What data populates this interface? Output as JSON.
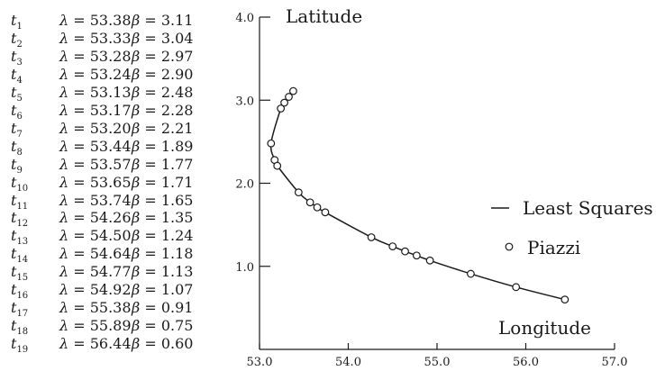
{
  "chart_data": {
    "type": "scatter",
    "ylabel": "Latitude",
    "xlabel": "Longitude",
    "xlim": [
      53.0,
      57.0
    ],
    "ylim": [
      0.0,
      4.0
    ],
    "xticks": [
      "53.0",
      "54.0",
      "55.0",
      "56.0",
      "57.0"
    ],
    "yticks": [
      "1.0",
      "2.0",
      "3.0",
      "4.0"
    ],
    "legend_position": "right",
    "series": [
      {
        "name": "Least Squares",
        "kind": "line"
      },
      {
        "name": "Piazzi",
        "kind": "scatter-open-circle"
      }
    ],
    "observations": [
      {
        "t": "t",
        "i": "1",
        "lambda": "53.38",
        "beta": "3.11"
      },
      {
        "t": "t",
        "i": "2",
        "lambda": "53.33",
        "beta": "3.04"
      },
      {
        "t": "t",
        "i": "3",
        "lambda": "53.28",
        "beta": "2.97"
      },
      {
        "t": "t",
        "i": "4",
        "lambda": "53.24",
        "beta": "2.90"
      },
      {
        "t": "t",
        "i": "5",
        "lambda": "53.13",
        "beta": "2.48"
      },
      {
        "t": "t",
        "i": "6",
        "lambda": "53.17",
        "beta": "2.28"
      },
      {
        "t": "t",
        "i": "7",
        "lambda": "53.20",
        "beta": "2.21"
      },
      {
        "t": "t",
        "i": "8",
        "lambda": "53.44",
        "beta": "1.89"
      },
      {
        "t": "t",
        "i": "9",
        "lambda": "53.57",
        "beta": "1.77"
      },
      {
        "t": "t",
        "i": "10",
        "lambda": "53.65",
        "beta": "1.71"
      },
      {
        "t": "t",
        "i": "11",
        "lambda": "53.74",
        "beta": "1.65"
      },
      {
        "t": "t",
        "i": "12",
        "lambda": "54.26",
        "beta": "1.35"
      },
      {
        "t": "t",
        "i": "13",
        "lambda": "54.50",
        "beta": "1.24"
      },
      {
        "t": "t",
        "i": "14",
        "lambda": "54.64",
        "beta": "1.18"
      },
      {
        "t": "t",
        "i": "15",
        "lambda": "54.77",
        "beta": "1.13"
      },
      {
        "t": "t",
        "i": "16",
        "lambda": "54.92",
        "beta": "1.07"
      },
      {
        "t": "t",
        "i": "17",
        "lambda": "55.38",
        "beta": "0.91"
      },
      {
        "t": "t",
        "i": "18",
        "lambda": "55.89",
        "beta": "0.75"
      },
      {
        "t": "t",
        "i": "19",
        "lambda": "56.44",
        "beta": "0.60"
      }
    ],
    "symbols": {
      "lambda": "λ",
      "beta": "β",
      "eq": "="
    }
  },
  "colors": {
    "ink": "#1a1a1a",
    "background": "#ffffff"
  }
}
